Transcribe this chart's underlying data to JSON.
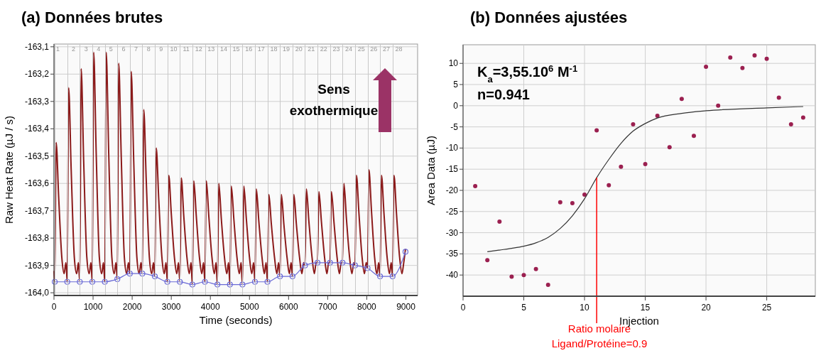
{
  "chart_data": [
    {
      "type": "line",
      "title": "(a) Données brutes",
      "xlabel": "Time (seconds)",
      "ylabel": "Raw Heat Rate (µJ / s)",
      "xlim": [
        0,
        9300
      ],
      "ylim": [
        -164.01,
        -163.09
      ],
      "xticks": [
        0,
        1000,
        2000,
        3000,
        4000,
        5000,
        6000,
        7000,
        8000,
        9000
      ],
      "yticks": [
        {
          "value": -163.1,
          "label": "-163,1"
        },
        {
          "value": -163.2,
          "label": "-163,2"
        },
        {
          "value": -163.3,
          "label": "-163,3"
        },
        {
          "value": -163.4,
          "label": "-163,4"
        },
        {
          "value": -163.5,
          "label": "-163,5"
        },
        {
          "value": -163.6,
          "label": "-163,6"
        },
        {
          "value": -163.7,
          "label": "-163,7"
        },
        {
          "value": -163.8,
          "label": "-163,8"
        },
        {
          "value": -163.9,
          "label": "-163,9"
        },
        {
          "value": -164.0,
          "label": "-164,0"
        }
      ],
      "grid": "y",
      "annotations": [
        "Sens\nexothermique",
        "1",
        "2",
        "3",
        "4",
        "5",
        "6",
        "7",
        "8",
        "9",
        "10",
        "11",
        "12",
        "13",
        "14",
        "15",
        "16",
        "17",
        "18",
        "19",
        "20",
        "21",
        "22",
        "23",
        "24",
        "25",
        "26",
        "27",
        "28"
      ],
      "ref_lines": [
        {
          "axis": "x",
          "value": 20,
          "color": "#c8c8c8"
        },
        {
          "axis": "x",
          "value": 340,
          "color": "#c8c8c8"
        },
        {
          "axis": "x",
          "value": 660,
          "color": "#c8c8c8"
        },
        {
          "axis": "x",
          "value": 980,
          "color": "#c8c8c8"
        },
        {
          "axis": "x",
          "value": 1300,
          "color": "#c8c8c8"
        },
        {
          "axis": "x",
          "value": 1620,
          "color": "#c8c8c8"
        },
        {
          "axis": "x",
          "value": 1940,
          "color": "#c8c8c8"
        },
        {
          "axis": "x",
          "value": 2260,
          "color": "#c8c8c8"
        },
        {
          "axis": "x",
          "value": 2580,
          "color": "#c8c8c8"
        },
        {
          "axis": "x",
          "value": 2900,
          "color": "#c8c8c8"
        },
        {
          "axis": "x",
          "value": 3220,
          "color": "#c8c8c8"
        },
        {
          "axis": "x",
          "value": 3540,
          "color": "#c8c8c8"
        },
        {
          "axis": "x",
          "value": 3860,
          "color": "#c8c8c8"
        },
        {
          "axis": "x",
          "value": 4180,
          "color": "#c8c8c8"
        },
        {
          "axis": "x",
          "value": 4500,
          "color": "#c8c8c8"
        },
        {
          "axis": "x",
          "value": 4820,
          "color": "#c8c8c8"
        },
        {
          "axis": "x",
          "value": 5140,
          "color": "#c8c8c8"
        },
        {
          "axis": "x",
          "value": 5460,
          "color": "#c8c8c8"
        },
        {
          "axis": "x",
          "value": 5780,
          "color": "#c8c8c8"
        },
        {
          "axis": "x",
          "value": 6100,
          "color": "#c8c8c8"
        },
        {
          "axis": "x",
          "value": 6420,
          "color": "#c8c8c8"
        },
        {
          "axis": "x",
          "value": 6740,
          "color": "#c8c8c8"
        },
        {
          "axis": "x",
          "value": 7060,
          "color": "#c8c8c8"
        },
        {
          "axis": "x",
          "value": 7380,
          "color": "#c8c8c8"
        },
        {
          "axis": "x",
          "value": 7700,
          "color": "#c8c8c8"
        },
        {
          "axis": "x",
          "value": 8020,
          "color": "#c8c8c8"
        },
        {
          "axis": "x",
          "value": 8340,
          "color": "#c8c8c8"
        },
        {
          "axis": "x",
          "value": 8660,
          "color": "#c8c8c8"
        }
      ],
      "series": [
        {
          "type": "line",
          "color": "#8b1a1a",
          "marker": "none",
          "x": [
            0,
            20,
            55,
            120,
            200,
            260,
            305,
            340,
            375,
            440,
            520,
            580,
            625,
            660,
            695,
            760,
            840,
            900,
            945,
            980,
            1015,
            1080,
            1160,
            1220,
            1265,
            1300,
            1335,
            1400,
            1480,
            1540,
            1585,
            1620,
            1655,
            1720,
            1800,
            1860,
            1905,
            1940,
            1975,
            2040,
            2120,
            2180,
            2225,
            2260,
            2295,
            2360,
            2440,
            2500,
            2545,
            2580,
            2615,
            2680,
            2760,
            2820,
            2865,
            2900,
            2935,
            3000,
            3080,
            3140,
            3185,
            3220,
            3255,
            3320,
            3400,
            3460,
            3505,
            3540,
            3575,
            3640,
            3720,
            3780,
            3825,
            3860,
            3895,
            3960,
            4040,
            4100,
            4145,
            4180,
            4215,
            4280,
            4360,
            4420,
            4465,
            4500,
            4535,
            4600,
            4680,
            4740,
            4785,
            4820,
            4855,
            4920,
            5000,
            5060,
            5105,
            5140,
            5175,
            5240,
            5320,
            5380,
            5425,
            5460,
            5495,
            5560,
            5640,
            5700,
            5745,
            5780,
            5815,
            5880,
            5960,
            6020,
            6065,
            6100,
            6135,
            6200,
            6280,
            6340,
            6385,
            6420,
            6455,
            6520,
            6600,
            6660,
            6705,
            6740,
            6775,
            6840,
            6920,
            6980,
            7025,
            7060,
            7095,
            7160,
            7240,
            7300,
            7345,
            7380,
            7415,
            7480,
            7560,
            7620,
            7665,
            7700,
            7735,
            7800,
            7880,
            7940,
            7985,
            8020,
            8055,
            8120,
            8200,
            8260,
            8305,
            8340,
            8375,
            8440,
            8520,
            8580,
            8625,
            8660,
            8695,
            8760,
            8840,
            8900,
            8945,
            8990
          ],
          "values": [
            -163.92,
            -163.96,
            -163.45,
            -163.65,
            -163.87,
            -163.93,
            -163.89,
            -163.96,
            -163.25,
            -163.55,
            -163.87,
            -163.93,
            -163.89,
            -163.96,
            -163.18,
            -163.52,
            -163.87,
            -163.93,
            -163.89,
            -163.96,
            -163.12,
            -163.49,
            -163.87,
            -163.93,
            -163.89,
            -163.96,
            -163.12,
            -163.49,
            -163.87,
            -163.93,
            -163.89,
            -163.95,
            -163.16,
            -163.5,
            -163.87,
            -163.93,
            -163.89,
            -163.93,
            -163.19,
            -163.52,
            -163.87,
            -163.93,
            -163.89,
            -163.93,
            -163.33,
            -163.59,
            -163.87,
            -163.93,
            -163.89,
            -163.94,
            -163.47,
            -163.66,
            -163.87,
            -163.93,
            -163.89,
            -163.96,
            -163.57,
            -163.71,
            -163.87,
            -163.93,
            -163.89,
            -163.96,
            -163.58,
            -163.72,
            -163.87,
            -163.93,
            -163.89,
            -163.97,
            -163.59,
            -163.72,
            -163.87,
            -163.93,
            -163.89,
            -163.96,
            -163.59,
            -163.72,
            -163.87,
            -163.93,
            -163.89,
            -163.97,
            -163.6,
            -163.73,
            -163.87,
            -163.93,
            -163.89,
            -163.97,
            -163.61,
            -163.73,
            -163.87,
            -163.93,
            -163.89,
            -163.97,
            -163.61,
            -163.73,
            -163.87,
            -163.93,
            -163.89,
            -163.96,
            -163.62,
            -163.74,
            -163.87,
            -163.93,
            -163.89,
            -163.96,
            -163.64,
            -163.75,
            -163.87,
            -163.93,
            -163.89,
            -163.94,
            -163.64,
            -163.75,
            -163.87,
            -163.93,
            -163.89,
            -163.94,
            -163.64,
            -163.75,
            -163.87,
            -163.93,
            -163.89,
            -163.9,
            -163.62,
            -163.74,
            -163.87,
            -163.93,
            -163.89,
            -163.89,
            -163.63,
            -163.74,
            -163.87,
            -163.93,
            -163.89,
            -163.89,
            -163.63,
            -163.74,
            -163.87,
            -163.93,
            -163.89,
            -163.89,
            -163.6,
            -163.73,
            -163.87,
            -163.93,
            -163.89,
            -163.9,
            -163.57,
            -163.71,
            -163.87,
            -163.93,
            -163.89,
            -163.91,
            -163.55,
            -163.7,
            -163.87,
            -163.93,
            -163.89,
            -163.94,
            -163.57,
            -163.71,
            -163.87,
            -163.93,
            -163.89,
            -163.94,
            -163.57,
            -163.71,
            -163.87,
            -163.93,
            -163.89,
            -163.84
          ]
        },
        {
          "type": "line",
          "color": "#6b6bd6",
          "marker": "circle",
          "x": [
            20,
            340,
            660,
            980,
            1300,
            1620,
            1940,
            2260,
            2580,
            2900,
            3220,
            3540,
            3860,
            4180,
            4500,
            4820,
            5140,
            5460,
            5780,
            6100,
            6420,
            6740,
            7060,
            7380,
            7700,
            8020,
            8340,
            8660,
            8990
          ],
          "values": [
            -163.96,
            -163.96,
            -163.96,
            -163.96,
            -163.96,
            -163.95,
            -163.93,
            -163.93,
            -163.94,
            -163.96,
            -163.96,
            -163.97,
            -163.96,
            -163.97,
            -163.97,
            -163.97,
            -163.96,
            -163.96,
            -163.94,
            -163.94,
            -163.9,
            -163.89,
            -163.89,
            -163.89,
            -163.9,
            -163.91,
            -163.94,
            -163.94,
            -163.85
          ]
        }
      ]
    },
    {
      "type": "scatter",
      "title": "(b) Données ajustées",
      "xlabel": "Injection",
      "ylabel": "Area Data (µJ)",
      "xlim": [
        0,
        29
      ],
      "ylim": [
        -45,
        14.4
      ],
      "xticks": [
        0,
        5,
        10,
        15,
        20,
        25
      ],
      "yticks": [
        -40,
        -35,
        -30,
        -25,
        -20,
        -15,
        -10,
        -5,
        0,
        5,
        10
      ],
      "grid": true,
      "annotations": [
        "K$_{a}$=3,55.10$^{6}$ M$^{-1}$",
        "n=0.941",
        "Ratio molaire\nLigand/Protéine=0.9"
      ],
      "ref_lines": [
        {
          "axis": "x",
          "value": 11,
          "color": "#ff0000"
        }
      ],
      "series": [
        {
          "type": "scatter",
          "color": "#9b2050",
          "marker": "circle",
          "x": [
            1,
            2,
            3,
            4,
            5,
            6,
            7,
            8,
            9,
            10,
            11,
            12,
            13,
            14,
            15,
            16,
            17,
            18,
            19,
            20,
            21,
            22,
            23,
            24,
            25,
            26,
            27,
            28
          ],
          "values": [
            -19,
            -36.5,
            -27.4,
            -40.4,
            -40,
            -38.6,
            -42.3,
            -22.8,
            -23,
            -21,
            -5.8,
            -18.8,
            -14.4,
            -4.4,
            -13.8,
            -2.4,
            -9.8,
            1.6,
            -7.1,
            9.2,
            0,
            11.4,
            8.9,
            11.9,
            11.1,
            1.9,
            -4.4,
            -2.8
          ]
        },
        {
          "type": "line",
          "color": "#333333",
          "marker": "none",
          "x": [
            2,
            3,
            4,
            5,
            6,
            7,
            8,
            9,
            10,
            11,
            12,
            13,
            14,
            15,
            16,
            18,
            20,
            25,
            28
          ],
          "values": [
            -34.5,
            -34.1,
            -33.7,
            -33.2,
            -32.4,
            -31.1,
            -29,
            -26,
            -22,
            -17,
            -12.7,
            -8.9,
            -6,
            -4.2,
            -2.9,
            -1.8,
            -1.2,
            -0.5,
            -0.2
          ]
        }
      ]
    }
  ]
}
